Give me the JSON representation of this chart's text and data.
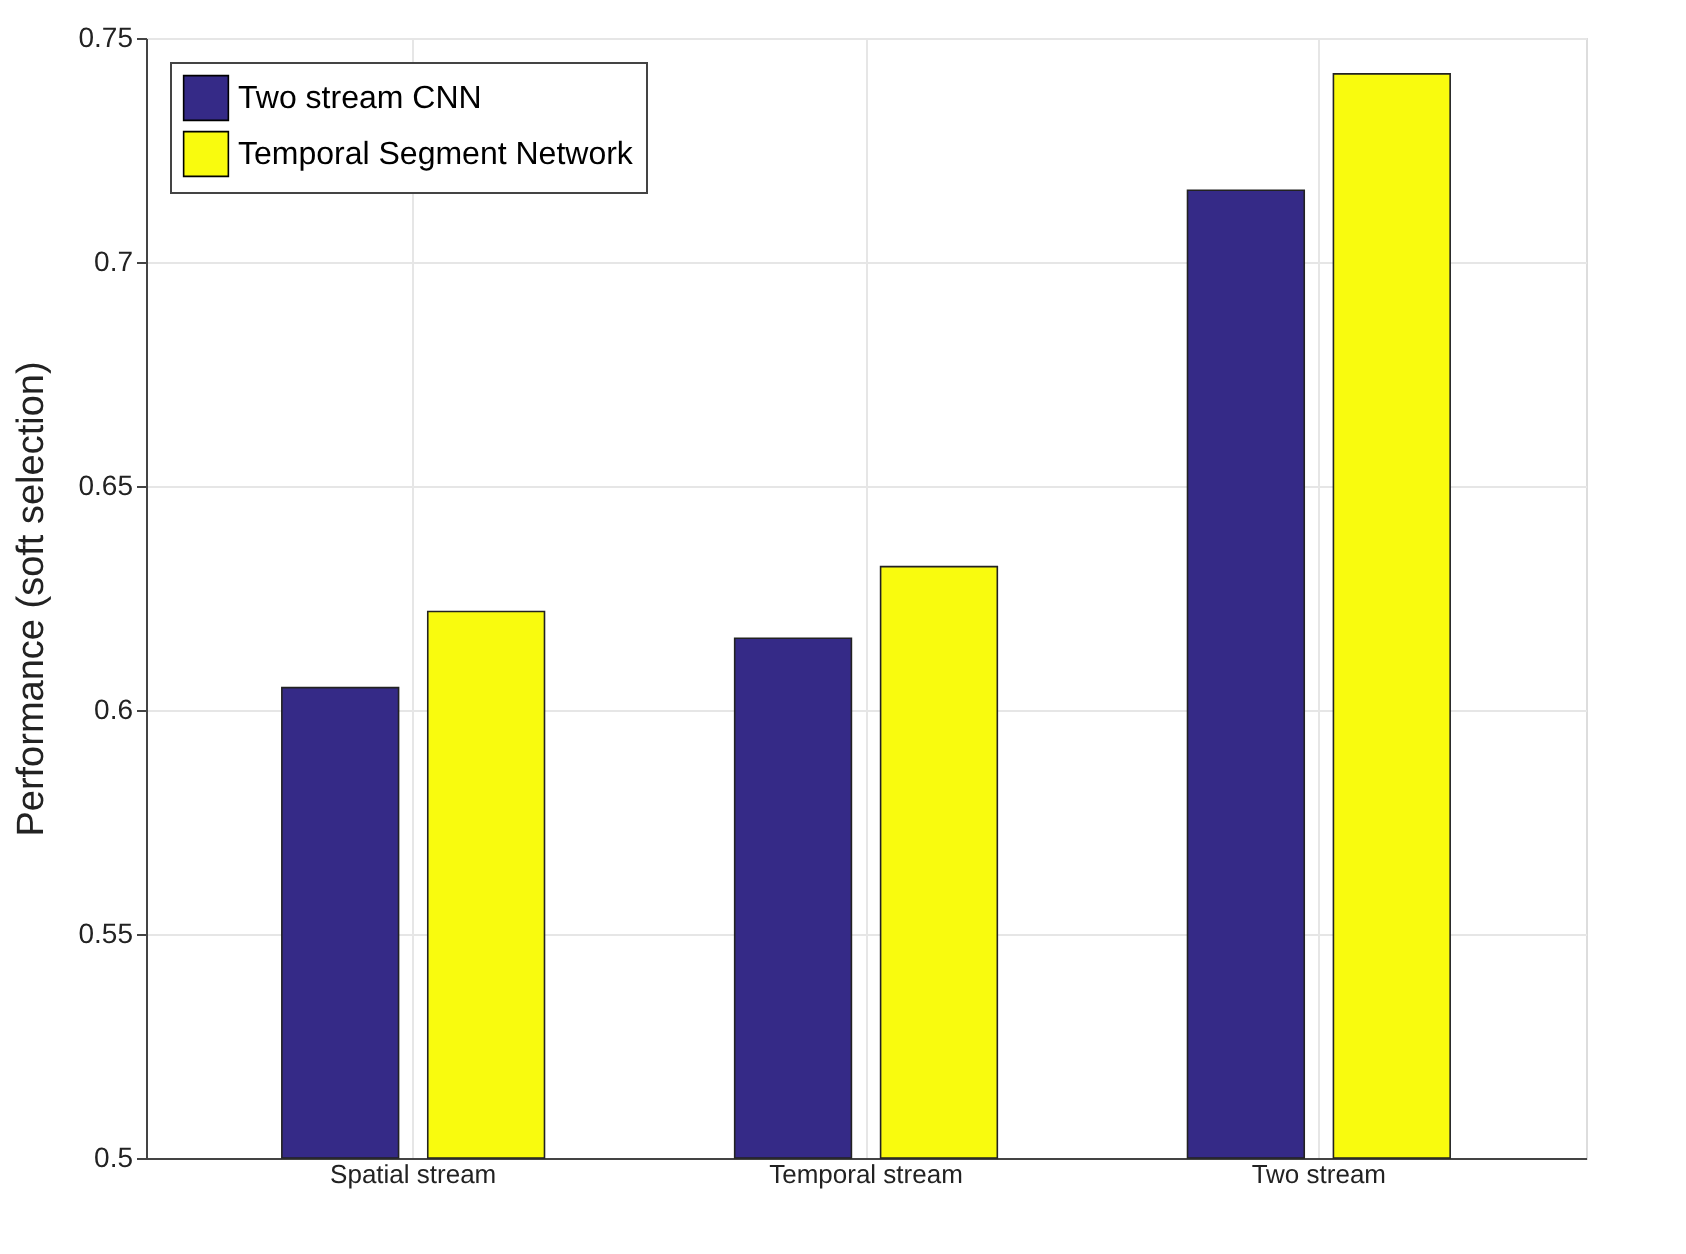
{
  "chart_data": {
    "type": "bar",
    "ylabel": "Performance (soft selection)",
    "categories": [
      "Spatial stream",
      "Temporal stream",
      "Two stream"
    ],
    "series": [
      {
        "name": "Two stream CNN",
        "color": "#352a87",
        "values": [
          0.605,
          0.616,
          0.716
        ]
      },
      {
        "name": "Temporal Segment Network",
        "color": "#f9fb0e",
        "values": [
          0.622,
          0.632,
          0.742
        ]
      }
    ],
    "ylim": [
      0.5,
      0.75
    ],
    "yticks": [
      0.5,
      0.55,
      0.6,
      0.65,
      0.7,
      0.75
    ],
    "grid": true,
    "legend": "top left"
  }
}
